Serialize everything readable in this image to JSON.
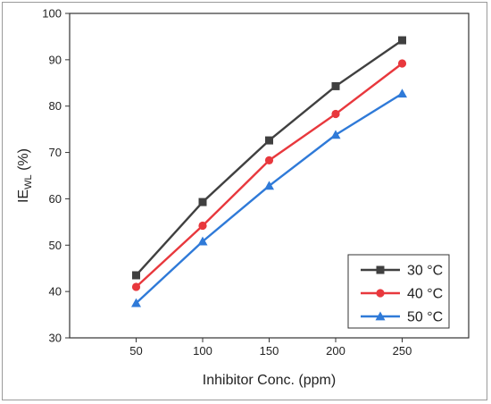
{
  "chart_data": {
    "type": "line",
    "title": "",
    "xlabel": "Inhibitor Conc. (ppm)",
    "ylabel": {
      "main": "IE",
      "sub": "WL",
      "suffix": " (%)"
    },
    "x": [
      50,
      100,
      150,
      200,
      250
    ],
    "xlim": [
      0,
      300
    ],
    "ylim": [
      30,
      100
    ],
    "xticks": [
      50,
      100,
      150,
      200,
      250
    ],
    "yticks": [
      30,
      40,
      50,
      60,
      70,
      80,
      90,
      100
    ],
    "grid": false,
    "legend_position": "bottom-right",
    "series": [
      {
        "name": "30 °C",
        "color": "#404040",
        "marker": "square",
        "values": [
          43.5,
          59.3,
          72.6,
          84.3,
          94.2
        ]
      },
      {
        "name": "40 °C",
        "color": "#e8383d",
        "marker": "circle",
        "values": [
          41.0,
          54.2,
          68.3,
          78.3,
          89.2
        ]
      },
      {
        "name": "50 °C",
        "color": "#2f7ad8",
        "marker": "triangle",
        "values": [
          37.5,
          50.8,
          62.8,
          73.8,
          82.7
        ]
      }
    ]
  }
}
